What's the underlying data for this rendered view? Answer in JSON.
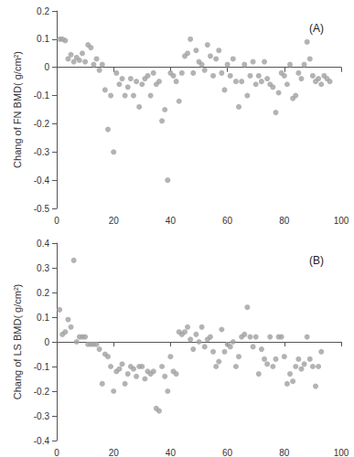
{
  "chart_data": [
    {
      "type": "scatter",
      "annotation": "(A)",
      "y_label": "Chang of FN BMD( g/cm²)",
      "color": "#a0a0a0",
      "marker": "circle",
      "grid": false,
      "xlim": [
        0,
        100
      ],
      "xticks": [
        0,
        20,
        40,
        60,
        80,
        100
      ],
      "ylim": [
        -0.5,
        0.2
      ],
      "yticks": [
        -0.5,
        -0.4,
        -0.3,
        -0.2,
        -0.1,
        0,
        0.1,
        0.2
      ],
      "x": [
        1,
        2,
        3,
        4,
        5,
        6,
        7,
        8,
        9,
        10,
        11,
        12,
        13,
        14,
        15,
        16,
        17,
        18,
        19,
        20,
        21,
        22,
        23,
        24,
        25,
        26,
        27,
        28,
        29,
        30,
        31,
        32,
        33,
        34,
        35,
        36,
        37,
        38,
        39,
        40,
        41,
        42,
        43,
        44,
        45,
        46,
        47,
        48,
        49,
        50,
        51,
        52,
        53,
        54,
        55,
        56,
        57,
        58,
        59,
        60,
        61,
        62,
        63,
        64,
        65,
        66,
        67,
        68,
        69,
        70,
        71,
        72,
        73,
        74,
        75,
        76,
        77,
        78,
        79,
        80,
        81,
        82,
        83,
        84,
        85,
        86,
        87,
        88,
        89,
        90,
        91,
        92,
        93,
        94,
        95,
        96
      ],
      "values": [
        0.1,
        0.1,
        0.095,
        0.03,
        0.045,
        0.02,
        0.035,
        0.025,
        0.05,
        0.02,
        0.08,
        0.07,
        0.01,
        0.03,
        -0.01,
        0.01,
        -0.08,
        -0.22,
        -0.1,
        -0.3,
        -0.02,
        -0.06,
        -0.04,
        -0.1,
        -0.07,
        -0.04,
        -0.1,
        -0.05,
        -0.14,
        -0.06,
        -0.04,
        -0.03,
        -0.1,
        -0.02,
        -0.06,
        -0.05,
        -0.19,
        -0.15,
        -0.4,
        -0.02,
        -0.03,
        -0.05,
        -0.12,
        -0.02,
        0.04,
        0.05,
        0.1,
        -0.02,
        0.06,
        0.02,
        0.01,
        -0.01,
        0.08,
        0.04,
        -0.03,
        0.03,
        0.06,
        -0.02,
        -0.08,
        0.01,
        -0.03,
        0.03,
        -0.05,
        -0.14,
        -0.05,
        0.01,
        -0.1,
        -0.03,
        0.02,
        -0.06,
        -0.03,
        -0.05,
        0.02,
        -0.04,
        -0.06,
        -0.07,
        -0.16,
        -0.09,
        -0.02,
        -0.03,
        -0.06,
        0.01,
        -0.11,
        -0.1,
        -0.02,
        -0.04,
        0.01,
        0.09,
        0.03,
        -0.03,
        -0.05,
        -0.04,
        -0.06,
        -0.03,
        -0.04,
        -0.05
      ]
    },
    {
      "type": "scatter",
      "annotation": "(B)",
      "y_label": "Chang of LS BMD( g/cm²)",
      "color": "#a0a0a0",
      "marker": "circle",
      "grid": false,
      "xlim": [
        0,
        100
      ],
      "xticks": [
        0,
        20,
        40,
        60,
        80,
        100
      ],
      "ylim": [
        -0.4,
        0.4
      ],
      "yticks": [
        -0.4,
        -0.3,
        -0.2,
        -0.1,
        0,
        0.1,
        0.2,
        0.3,
        0.4
      ],
      "x": [
        1,
        2,
        3,
        4,
        5,
        6,
        7,
        8,
        9,
        10,
        11,
        12,
        13,
        14,
        15,
        16,
        17,
        18,
        19,
        20,
        21,
        22,
        23,
        24,
        25,
        26,
        27,
        28,
        29,
        30,
        31,
        32,
        33,
        34,
        35,
        36,
        37,
        38,
        39,
        40,
        41,
        42,
        43,
        44,
        45,
        46,
        47,
        48,
        49,
        50,
        51,
        52,
        53,
        54,
        55,
        56,
        57,
        58,
        59,
        60,
        61,
        62,
        63,
        64,
        65,
        66,
        67,
        68,
        69,
        70,
        71,
        72,
        73,
        74,
        75,
        76,
        77,
        78,
        79,
        80,
        81,
        82,
        83,
        84,
        85,
        86,
        87,
        88,
        89,
        90,
        91,
        92,
        93
      ],
      "values": [
        0.13,
        0.03,
        0.04,
        0.09,
        0.06,
        0.33,
        0.0,
        0.02,
        0.02,
        0.02,
        -0.01,
        -0.01,
        -0.01,
        -0.01,
        -0.03,
        -0.17,
        -0.05,
        -0.06,
        -0.1,
        -0.2,
        -0.12,
        -0.11,
        -0.09,
        -0.17,
        -0.13,
        -0.1,
        -0.11,
        -0.14,
        -0.1,
        -0.1,
        -0.15,
        -0.12,
        -0.13,
        -0.12,
        -0.27,
        -0.28,
        -0.1,
        -0.14,
        -0.2,
        -0.06,
        -0.12,
        -0.13,
        0.04,
        0.03,
        0.04,
        0.06,
        0.01,
        -0.03,
        0.03,
        0.0,
        0.06,
        -0.02,
        0.01,
        0.02,
        -0.04,
        -0.1,
        -0.08,
        0.05,
        -0.04,
        -0.01,
        -0.02,
        0.0,
        -0.1,
        -0.06,
        0.02,
        0.03,
        0.14,
        0.02,
        -0.02,
        0.02,
        -0.13,
        -0.03,
        -0.07,
        -0.09,
        0.02,
        -0.1,
        -0.07,
        0.02,
        0.02,
        -0.06,
        -0.17,
        -0.13,
        -0.16,
        -0.1,
        -0.07,
        -0.11,
        -0.09,
        0.02,
        -0.07,
        -0.1,
        -0.18,
        -0.1,
        -0.04
      ]
    }
  ]
}
